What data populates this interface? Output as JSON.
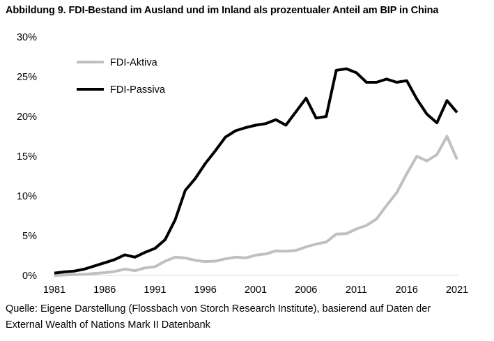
{
  "title": "Abbildung 9. FDI-Bestand im Ausland und im Inland als prozentualer Anteil am BIP in China",
  "source_line1": "Quelle: Eigene Darstellung (Flossbach von Storch Research Institute), basierend auf Daten der",
  "source_line2": "External Wealth of Nations Mark II Datenbank",
  "chart_data": {
    "type": "line",
    "title": "Abbildung 9. FDI-Bestand im Ausland und im Inland als prozentualer Anteil am BIP in China",
    "xlabel": "",
    "ylabel": "",
    "xlim": [
      1981,
      2021
    ],
    "ylim": [
      0,
      30
    ],
    "x_ticks": [
      1981,
      1986,
      1991,
      1996,
      2001,
      2006,
      2011,
      2016,
      2021
    ],
    "y_ticks": [
      0,
      5,
      10,
      15,
      20,
      25,
      30
    ],
    "y_tick_labels": [
      "0%",
      "5%",
      "10%",
      "15%",
      "20%",
      "25%",
      "30%"
    ],
    "grid": false,
    "legend_position": "top-left",
    "x": [
      1981,
      1982,
      1983,
      1984,
      1985,
      1986,
      1987,
      1988,
      1989,
      1990,
      1991,
      1992,
      1993,
      1994,
      1995,
      1996,
      1997,
      1998,
      1999,
      2000,
      2001,
      2002,
      2003,
      2004,
      2005,
      2006,
      2007,
      2008,
      2009,
      2010,
      2011,
      2012,
      2013,
      2014,
      2015,
      2016,
      2017,
      2018,
      2019,
      2020,
      2021
    ],
    "series": [
      {
        "name": "FDI-Aktiva",
        "color": "#c0c0c0",
        "values": [
          0.0,
          0.05,
          0.1,
          0.15,
          0.25,
          0.35,
          0.5,
          0.8,
          0.6,
          0.95,
          1.1,
          1.8,
          2.3,
          2.2,
          1.9,
          1.75,
          1.8,
          2.1,
          2.3,
          2.2,
          2.55,
          2.7,
          3.1,
          3.05,
          3.15,
          3.6,
          3.95,
          4.2,
          5.2,
          5.25,
          5.85,
          6.3,
          7.1,
          8.8,
          10.4,
          12.8,
          15.0,
          14.4,
          15.2,
          17.5,
          14.6
        ]
      },
      {
        "name": "FDI-Passiva",
        "color": "#000000",
        "values": [
          0.3,
          0.45,
          0.55,
          0.8,
          1.2,
          1.6,
          2.0,
          2.6,
          2.3,
          2.9,
          3.4,
          4.5,
          7.0,
          10.7,
          12.2,
          14.1,
          15.7,
          17.4,
          18.2,
          18.6,
          18.9,
          19.1,
          19.6,
          18.9,
          20.6,
          22.3,
          19.8,
          20.0,
          25.8,
          26.0,
          25.5,
          24.3,
          24.3,
          24.7,
          24.3,
          24.5,
          22.2,
          20.3,
          19.2,
          22.0,
          20.5
        ]
      }
    ]
  }
}
